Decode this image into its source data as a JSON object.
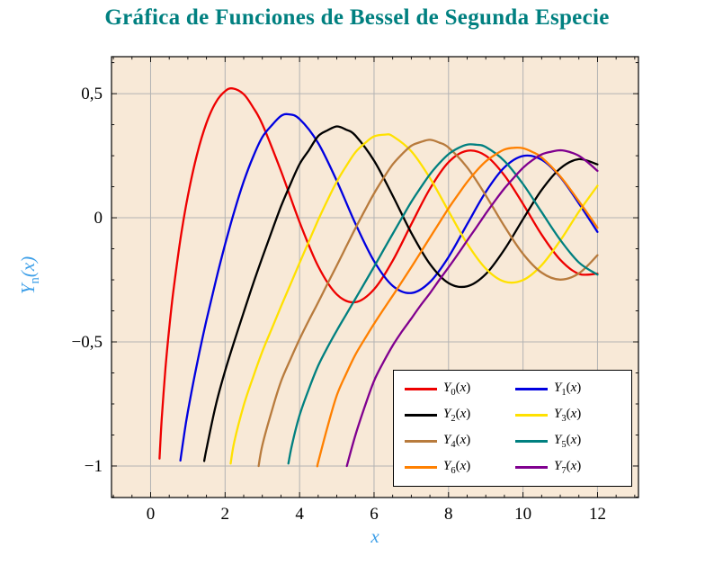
{
  "title": {
    "text": "Gráfica de Funciones de Bessel de Segunda Especie",
    "color": "#008080"
  },
  "plot": {
    "bg": "#f8e9d7",
    "grid_color": "#b3b3b3",
    "border_color": "#000000",
    "tick_color": "#000000"
  },
  "axes": {
    "x": {
      "label": "x",
      "label_color": "#3d9fe8",
      "ticks": [
        0,
        2,
        4,
        6,
        8,
        10,
        12
      ],
      "tick_labels": [
        "0",
        "2",
        "4",
        "6",
        "8",
        "10",
        "12"
      ]
    },
    "y": {
      "label_sym": "Y",
      "label_sub": "n",
      "label_arg": "(x)",
      "label_color": "#3d9fe8",
      "ticks": [
        -1,
        -0.5,
        0,
        0.5
      ],
      "tick_labels": [
        "−1",
        "−0,5",
        "0",
        "0,5"
      ]
    }
  },
  "chart_data": {
    "type": "line",
    "title": "Gráfica de Funciones de Bessel de Segunda Especie",
    "xlabel": "x",
    "ylabel": "Y_n(x)",
    "xlim": [
      -1.05,
      13.1
    ],
    "ylim": [
      -1.127,
      0.649
    ],
    "grid": true,
    "legend_position": "bottom-right",
    "series": [
      {
        "id": "y0",
        "name": "Y_0(x)",
        "sym": "Y",
        "sub": "0",
        "arg": "(x)",
        "color": "#ee0000",
        "points": [
          [
            0.24,
            -0.97
          ],
          [
            0.3,
            -0.807
          ],
          [
            0.4,
            -0.606
          ],
          [
            0.5,
            -0.445
          ],
          [
            0.6,
            -0.309
          ],
          [
            0.8,
            -0.087
          ],
          [
            1.0,
            0.088
          ],
          [
            1.25,
            0.258
          ],
          [
            1.5,
            0.382
          ],
          [
            1.75,
            0.465
          ],
          [
            2.0,
            0.51
          ],
          [
            2.2,
            0.521
          ],
          [
            2.5,
            0.498
          ],
          [
            2.75,
            0.445
          ],
          [
            3.0,
            0.377
          ],
          [
            3.5,
            0.189
          ],
          [
            4.0,
            -0.017
          ],
          [
            4.5,
            -0.195
          ],
          [
            5.0,
            -0.309
          ],
          [
            5.5,
            -0.34
          ],
          [
            6.0,
            -0.288
          ],
          [
            6.5,
            -0.173
          ],
          [
            7.0,
            -0.026
          ],
          [
            7.5,
            0.117
          ],
          [
            8.0,
            0.224
          ],
          [
            8.5,
            0.27
          ],
          [
            9.0,
            0.25
          ],
          [
            9.5,
            0.171
          ],
          [
            10.0,
            0.056
          ],
          [
            10.5,
            -0.068
          ],
          [
            11.0,
            -0.169
          ],
          [
            11.5,
            -0.226
          ],
          [
            12.0,
            -0.225
          ]
        ]
      },
      {
        "id": "y1",
        "name": "Y_1(x)",
        "sym": "Y",
        "sub": "1",
        "arg": "(x)",
        "color": "#0000e0",
        "points": [
          [
            0.8,
            -0.978
          ],
          [
            0.9,
            -0.873
          ],
          [
            1.0,
            -0.781
          ],
          [
            1.25,
            -0.585
          ],
          [
            1.5,
            -0.412
          ],
          [
            1.75,
            -0.254
          ],
          [
            2.0,
            -0.107
          ],
          [
            2.25,
            0.027
          ],
          [
            2.5,
            0.146
          ],
          [
            2.75,
            0.245
          ],
          [
            3.0,
            0.325
          ],
          [
            3.25,
            0.372
          ],
          [
            3.5,
            0.41
          ],
          [
            3.7,
            0.417
          ],
          [
            4.0,
            0.398
          ],
          [
            4.5,
            0.301
          ],
          [
            5.0,
            0.148
          ],
          [
            5.5,
            -0.024
          ],
          [
            6.0,
            -0.175
          ],
          [
            6.5,
            -0.274
          ],
          [
            7.0,
            -0.303
          ],
          [
            7.5,
            -0.259
          ],
          [
            8.0,
            -0.158
          ],
          [
            8.5,
            -0.026
          ],
          [
            9.0,
            0.104
          ],
          [
            9.5,
            0.203
          ],
          [
            10.0,
            0.249
          ],
          [
            10.5,
            0.234
          ],
          [
            11.0,
            0.164
          ],
          [
            11.5,
            0.058
          ],
          [
            12.0,
            -0.057
          ]
        ]
      },
      {
        "id": "y2",
        "name": "Y_2(x)",
        "sym": "Y",
        "sub": "2",
        "arg": "(x)",
        "color": "#000000",
        "points": [
          [
            1.44,
            -0.98
          ],
          [
            1.5,
            -0.932
          ],
          [
            1.75,
            -0.755
          ],
          [
            2.0,
            -0.617
          ],
          [
            2.25,
            -0.496
          ],
          [
            2.5,
            -0.381
          ],
          [
            2.75,
            -0.267
          ],
          [
            3.0,
            -0.16
          ],
          [
            3.25,
            -0.056
          ],
          [
            3.5,
            0.045
          ],
          [
            3.75,
            0.134
          ],
          [
            4.0,
            0.216
          ],
          [
            4.25,
            0.272
          ],
          [
            4.5,
            0.329
          ],
          [
            4.75,
            0.352
          ],
          [
            5.0,
            0.368
          ],
          [
            5.25,
            0.355
          ],
          [
            5.5,
            0.331
          ],
          [
            6.0,
            0.23
          ],
          [
            6.5,
            0.089
          ],
          [
            7.0,
            -0.061
          ],
          [
            7.5,
            -0.186
          ],
          [
            8.0,
            -0.263
          ],
          [
            8.5,
            -0.276
          ],
          [
            9.0,
            -0.227
          ],
          [
            9.5,
            -0.128
          ],
          [
            10.0,
            -0.006
          ],
          [
            10.5,
            0.112
          ],
          [
            11.0,
            0.199
          ],
          [
            11.5,
            0.236
          ],
          [
            12.0,
            0.215
          ]
        ]
      },
      {
        "id": "y3",
        "name": "Y_3(x)",
        "sym": "Y",
        "sub": "3",
        "arg": "(x)",
        "color": "#ffe100",
        "points": [
          [
            2.15,
            -0.99
          ],
          [
            2.25,
            -0.9
          ],
          [
            2.5,
            -0.756
          ],
          [
            2.75,
            -0.643
          ],
          [
            3.0,
            -0.539
          ],
          [
            3.25,
            -0.448
          ],
          [
            3.5,
            -0.358
          ],
          [
            3.75,
            -0.27
          ],
          [
            4.0,
            -0.182
          ],
          [
            4.25,
            -0.095
          ],
          [
            4.5,
            -0.009
          ],
          [
            4.75,
            0.071
          ],
          [
            5.0,
            0.146
          ],
          [
            5.25,
            0.208
          ],
          [
            5.5,
            0.264
          ],
          [
            5.75,
            0.3
          ],
          [
            6.0,
            0.328
          ],
          [
            6.3,
            0.335
          ],
          [
            6.5,
            0.329
          ],
          [
            7.0,
            0.268
          ],
          [
            7.5,
            0.16
          ],
          [
            8.0,
            0.027
          ],
          [
            8.5,
            -0.104
          ],
          [
            9.0,
            -0.205
          ],
          [
            9.5,
            -0.257
          ],
          [
            10.0,
            -0.251
          ],
          [
            10.5,
            -0.191
          ],
          [
            11.0,
            -0.092
          ],
          [
            11.5,
            0.024
          ],
          [
            12.0,
            0.129
          ]
        ]
      },
      {
        "id": "y4",
        "name": "Y_4(x)",
        "sym": "Y",
        "sub": "4",
        "arg": "(x)",
        "color": "#b87b3d",
        "points": [
          [
            2.9,
            -1.0
          ],
          [
            3.0,
            -0.917
          ],
          [
            3.25,
            -0.78
          ],
          [
            3.5,
            -0.66
          ],
          [
            3.75,
            -0.572
          ],
          [
            4.0,
            -0.489
          ],
          [
            4.25,
            -0.413
          ],
          [
            4.5,
            -0.341
          ],
          [
            4.75,
            -0.266
          ],
          [
            5.0,
            -0.192
          ],
          [
            5.25,
            -0.117
          ],
          [
            5.5,
            -0.042
          ],
          [
            5.75,
            0.029
          ],
          [
            6.0,
            0.098
          ],
          [
            6.25,
            0.159
          ],
          [
            6.5,
            0.215
          ],
          [
            6.75,
            0.256
          ],
          [
            7.0,
            0.29
          ],
          [
            7.25,
            0.305
          ],
          [
            7.5,
            0.314
          ],
          [
            7.75,
            0.303
          ],
          [
            8.0,
            0.283
          ],
          [
            8.5,
            0.203
          ],
          [
            9.0,
            0.09
          ],
          [
            9.5,
            -0.034
          ],
          [
            10.0,
            -0.145
          ],
          [
            10.5,
            -0.221
          ],
          [
            11.0,
            -0.249
          ],
          [
            11.5,
            -0.224
          ],
          [
            12.0,
            -0.151
          ]
        ]
      },
      {
        "id": "y5",
        "name": "Y_5(x)",
        "sym": "Y",
        "sub": "5",
        "arg": "(x)",
        "color": "#008080",
        "points": [
          [
            3.7,
            -0.99
          ],
          [
            3.8,
            -0.912
          ],
          [
            4.0,
            -0.796
          ],
          [
            4.25,
            -0.69
          ],
          [
            4.5,
            -0.596
          ],
          [
            4.75,
            -0.522
          ],
          [
            5.0,
            -0.454
          ],
          [
            5.25,
            -0.39
          ],
          [
            5.5,
            -0.326
          ],
          [
            5.75,
            -0.262
          ],
          [
            6.0,
            -0.197
          ],
          [
            6.25,
            -0.131
          ],
          [
            6.5,
            -0.065
          ],
          [
            6.75,
            0.0
          ],
          [
            7.0,
            0.064
          ],
          [
            7.25,
            0.121
          ],
          [
            7.5,
            0.175
          ],
          [
            7.75,
            0.219
          ],
          [
            8.0,
            0.256
          ],
          [
            8.25,
            0.28
          ],
          [
            8.5,
            0.295
          ],
          [
            8.75,
            0.294
          ],
          [
            9.0,
            0.285
          ],
          [
            9.5,
            0.229
          ],
          [
            10.0,
            0.136
          ],
          [
            10.5,
            0.023
          ],
          [
            11.0,
            -0.089
          ],
          [
            11.5,
            -0.18
          ],
          [
            12.0,
            -0.229
          ]
        ]
      },
      {
        "id": "y6",
        "name": "Y_6(x)",
        "sym": "Y",
        "sub": "6",
        "arg": "(x)",
        "color": "#ff8000",
        "points": [
          [
            4.48,
            -1.0
          ],
          [
            4.5,
            -0.985
          ],
          [
            4.75,
            -0.843
          ],
          [
            5.0,
            -0.715
          ],
          [
            5.25,
            -0.629
          ],
          [
            5.5,
            -0.551
          ],
          [
            5.75,
            -0.488
          ],
          [
            6.0,
            -0.427
          ],
          [
            6.25,
            -0.37
          ],
          [
            6.5,
            -0.314
          ],
          [
            6.75,
            -0.257
          ],
          [
            7.0,
            -0.199
          ],
          [
            7.25,
            -0.14
          ],
          [
            7.5,
            -0.08
          ],
          [
            7.75,
            -0.021
          ],
          [
            8.0,
            0.038
          ],
          [
            8.25,
            0.092
          ],
          [
            8.5,
            0.144
          ],
          [
            8.75,
            0.189
          ],
          [
            9.0,
            0.227
          ],
          [
            9.25,
            0.254
          ],
          [
            9.5,
            0.275
          ],
          [
            9.75,
            0.282
          ],
          [
            10.0,
            0.28
          ],
          [
            10.25,
            0.265
          ],
          [
            10.5,
            0.243
          ],
          [
            11.0,
            0.167
          ],
          [
            11.5,
            0.067
          ],
          [
            12.0,
            -0.04
          ]
        ]
      },
      {
        "id": "y7",
        "name": "Y_7(x)",
        "sym": "Y",
        "sub": "7",
        "arg": "(x)",
        "color": "#80008f",
        "points": [
          [
            5.27,
            -1.0
          ],
          [
            5.5,
            -0.875
          ],
          [
            5.75,
            -0.761
          ],
          [
            6.0,
            -0.657
          ],
          [
            6.25,
            -0.582
          ],
          [
            6.5,
            -0.515
          ],
          [
            6.75,
            -0.458
          ],
          [
            7.0,
            -0.406
          ],
          [
            7.25,
            -0.353
          ],
          [
            7.5,
            -0.304
          ],
          [
            7.75,
            -0.251
          ],
          [
            8.0,
            -0.2
          ],
          [
            8.25,
            -0.147
          ],
          [
            8.5,
            -0.092
          ],
          [
            8.75,
            -0.038
          ],
          [
            9.0,
            0.017
          ],
          [
            9.25,
            0.069
          ],
          [
            9.5,
            0.118
          ],
          [
            9.75,
            0.161
          ],
          [
            10.0,
            0.201
          ],
          [
            10.25,
            0.232
          ],
          [
            10.5,
            0.255
          ],
          [
            10.75,
            0.266
          ],
          [
            11.0,
            0.272
          ],
          [
            11.25,
            0.265
          ],
          [
            11.5,
            0.25
          ],
          [
            11.75,
            0.222
          ],
          [
            12.0,
            0.189
          ]
        ]
      }
    ]
  }
}
